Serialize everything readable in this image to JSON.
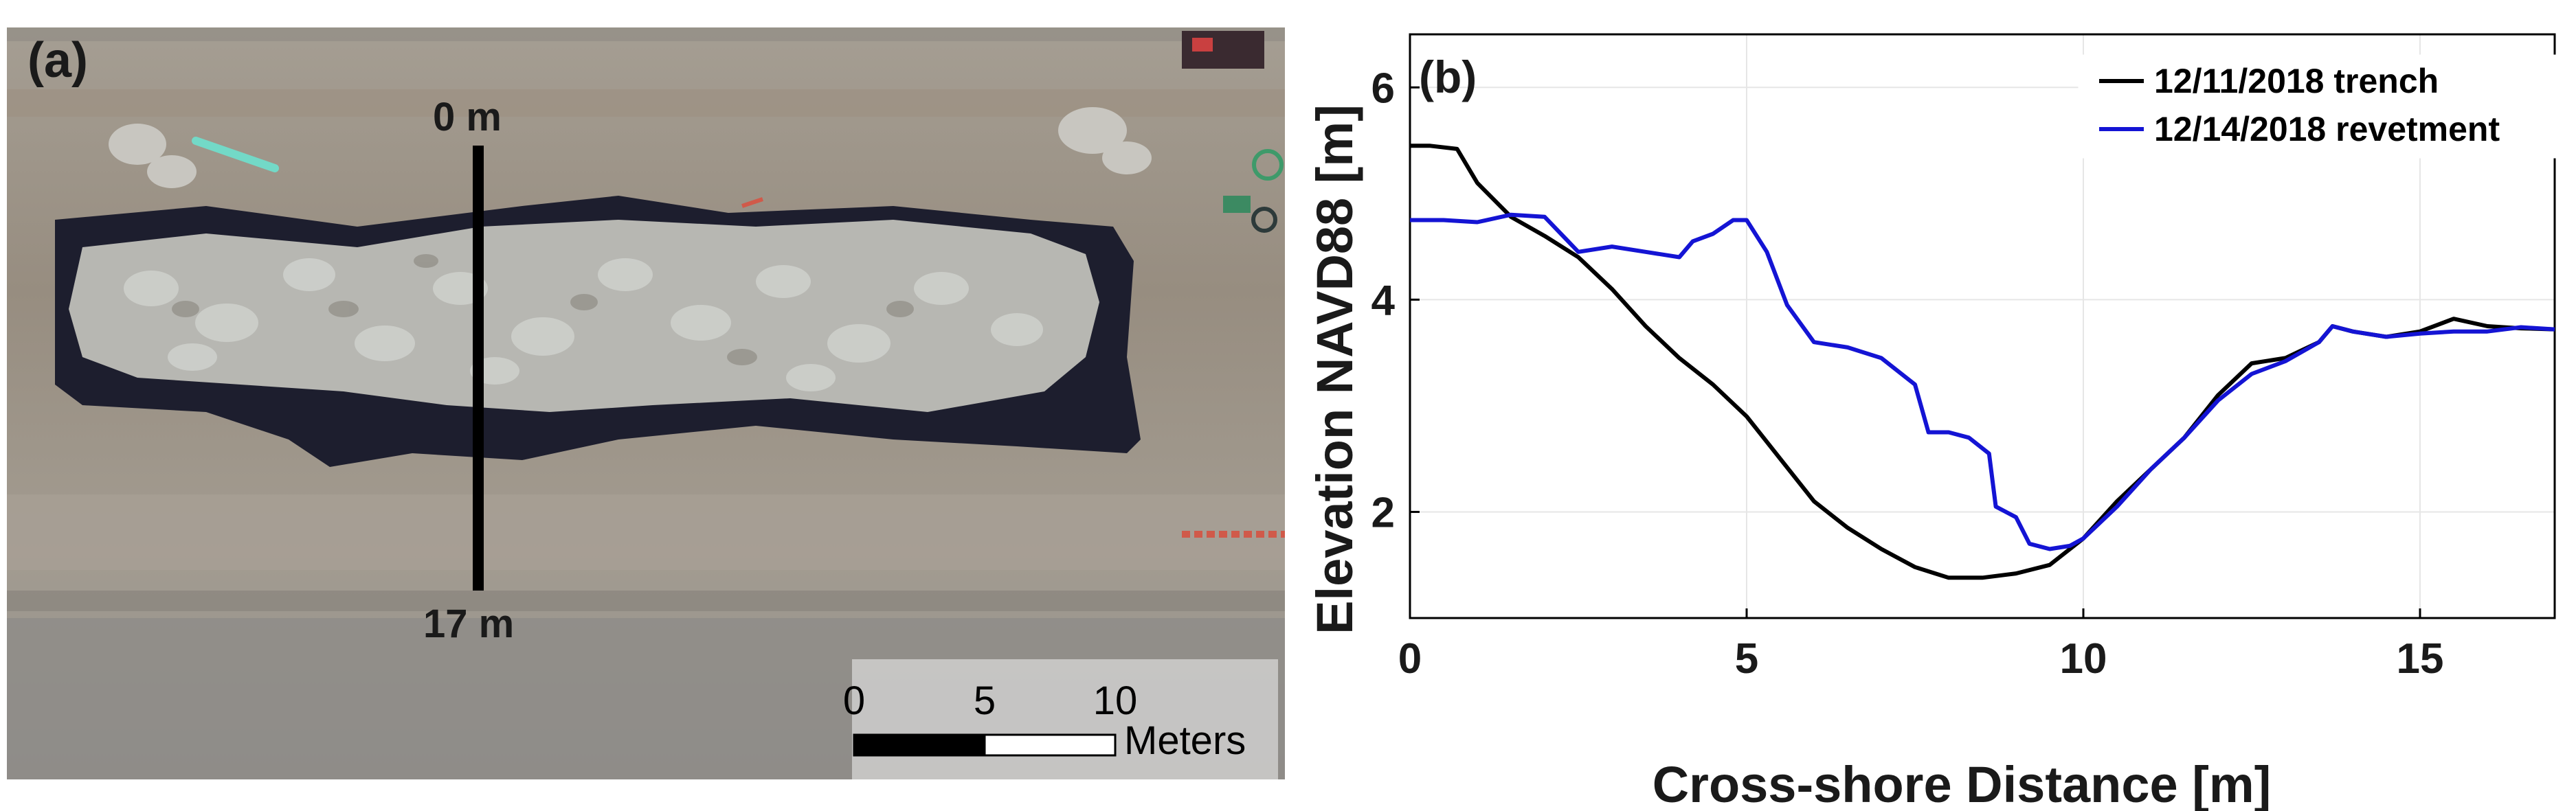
{
  "panel_a": {
    "label": "(a)",
    "transect_start_label": "0 m",
    "transect_end_label": "17 m",
    "scalebar": {
      "ticks": [
        "0",
        "5",
        "10"
      ],
      "unit": "Meters"
    }
  },
  "chart_data": {
    "type": "line",
    "panel_label": "(b)",
    "xlabel": "Cross-shore Distance [m]",
    "ylabel": "Elevation NAVD88 [m]",
    "xlim": [
      0,
      17
    ],
    "ylim": [
      1,
      6.5
    ],
    "xticks": [
      0,
      5,
      10,
      15
    ],
    "yticks": [
      2,
      4,
      6
    ],
    "grid": true,
    "legend_position": "top-right",
    "series": [
      {
        "name": "12/11/2018 trench",
        "color": "#000000",
        "x": [
          0,
          0.3,
          0.7,
          1.0,
          1.5,
          2.0,
          2.5,
          3.0,
          3.5,
          4.0,
          4.5,
          5.0,
          5.5,
          6.0,
          6.5,
          7.0,
          7.5,
          7.8,
          8.0,
          8.5,
          9.0,
          9.5,
          10.0,
          10.5,
          11.0,
          11.5,
          12.0,
          12.5,
          13.0,
          13.5,
          13.7,
          14.0,
          14.5,
          15.0,
          15.5,
          16.0,
          16.5,
          17.0
        ],
        "y": [
          5.45,
          5.45,
          5.42,
          5.1,
          4.78,
          4.6,
          4.4,
          4.1,
          3.75,
          3.45,
          3.2,
          2.9,
          2.5,
          2.1,
          1.85,
          1.65,
          1.48,
          1.42,
          1.38,
          1.38,
          1.42,
          1.5,
          1.75,
          2.1,
          2.4,
          2.7,
          3.1,
          3.4,
          3.45,
          3.6,
          3.75,
          3.7,
          3.65,
          3.7,
          3.82,
          3.75,
          3.73,
          3.72
        ]
      },
      {
        "name": "12/14/2018 revetment",
        "color": "#1414d4",
        "x": [
          0,
          0.5,
          1.0,
          1.5,
          2.0,
          2.5,
          3.0,
          3.5,
          4.0,
          4.2,
          4.5,
          4.8,
          5.0,
          5.3,
          5.6,
          6.0,
          6.5,
          7.0,
          7.5,
          7.7,
          8.0,
          8.3,
          8.6,
          8.7,
          9.0,
          9.2,
          9.5,
          9.8,
          10.0,
          10.5,
          11.0,
          11.5,
          12.0,
          12.5,
          13.0,
          13.5,
          13.7,
          14.0,
          14.5,
          15.0,
          15.5,
          16.0,
          16.5,
          17.0
        ],
        "y": [
          4.75,
          4.75,
          4.73,
          4.8,
          4.78,
          4.45,
          4.5,
          4.45,
          4.4,
          4.55,
          4.62,
          4.75,
          4.75,
          4.45,
          3.95,
          3.6,
          3.55,
          3.45,
          3.2,
          2.75,
          2.75,
          2.7,
          2.55,
          2.05,
          1.95,
          1.7,
          1.65,
          1.68,
          1.75,
          2.05,
          2.4,
          2.7,
          3.05,
          3.3,
          3.42,
          3.6,
          3.75,
          3.7,
          3.65,
          3.68,
          3.7,
          3.7,
          3.74,
          3.72
        ]
      }
    ]
  }
}
